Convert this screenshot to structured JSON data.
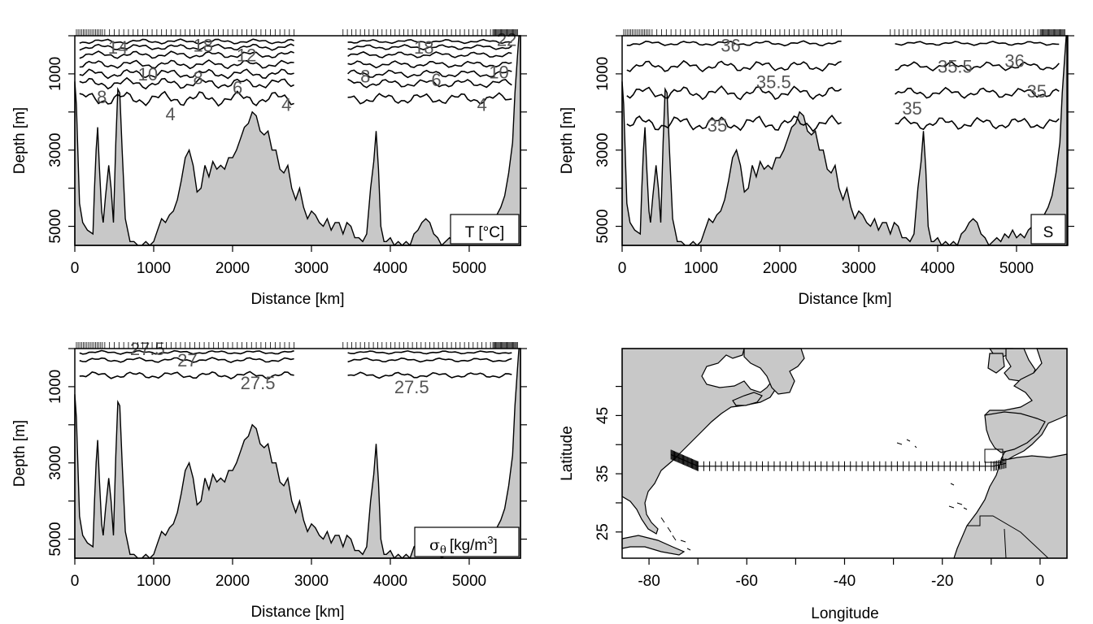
{
  "chart_data": [
    {
      "type": "area",
      "panel": "temperature-section",
      "xlabel": "Distance [km]",
      "ylabel": "Depth [m]",
      "xlim": [
        0,
        5650
      ],
      "ylim_reversed": [
        5500,
        0
      ],
      "xticks": [
        "0",
        "1000",
        "2000",
        "3000",
        "4000",
        "5000"
      ],
      "yticks": [
        "1000",
        "3000",
        "5000"
      ],
      "legend_label": "T [°C]",
      "contour_labels": [
        {
          "text": "14",
          "x": 420,
          "depth": 300
        },
        {
          "text": "18",
          "x": 1500,
          "depth": 250
        },
        {
          "text": "12",
          "x": 2050,
          "depth": 500
        },
        {
          "text": "10",
          "x": 800,
          "depth": 1000
        },
        {
          "text": "8",
          "x": 1500,
          "depth": 1100
        },
        {
          "text": "6",
          "x": 2000,
          "depth": 1350
        },
        {
          "text": "8",
          "x": 280,
          "depth": 1600
        },
        {
          "text": "4",
          "x": 1150,
          "depth": 2050
        },
        {
          "text": "4",
          "x": 2620,
          "depth": 1800
        },
        {
          "text": "18",
          "x": 4300,
          "depth": 300
        },
        {
          "text": "22",
          "x": 5350,
          "depth": 100
        },
        {
          "text": "8",
          "x": 3620,
          "depth": 1050
        },
        {
          "text": "6",
          "x": 4520,
          "depth": 1150
        },
        {
          "text": "10",
          "x": 5250,
          "depth": 950
        },
        {
          "text": "4",
          "x": 5100,
          "depth": 1800
        }
      ]
    },
    {
      "type": "area",
      "panel": "salinity-section",
      "xlabel": "Distance [km]",
      "ylabel": "Depth [m]",
      "xlim": [
        0,
        5650
      ],
      "ylim_reversed": [
        5500,
        0
      ],
      "xticks": [
        "0",
        "1000",
        "2000",
        "3000",
        "4000",
        "5000"
      ],
      "yticks": [
        "1000",
        "3000",
        "5000"
      ],
      "legend_label": "S",
      "contour_labels": [
        {
          "text": "36",
          "x": 1250,
          "depth": 250
        },
        {
          "text": "35.5",
          "x": 1700,
          "depth": 1200
        },
        {
          "text": "35",
          "x": 1080,
          "depth": 2350
        },
        {
          "text": "35.5",
          "x": 4000,
          "depth": 800
        },
        {
          "text": "36",
          "x": 4850,
          "depth": 650
        },
        {
          "text": "35",
          "x": 3550,
          "depth": 1900
        },
        {
          "text": "35",
          "x": 5130,
          "depth": 1450
        }
      ]
    },
    {
      "type": "area",
      "panel": "density-section",
      "xlabel": "Distance [km]",
      "ylabel": "Depth [m]",
      "xlim": [
        0,
        5650
      ],
      "ylim_reversed": [
        5500,
        0
      ],
      "xticks": [
        "0",
        "1000",
        "2000",
        "3000",
        "4000",
        "5000"
      ],
      "yticks": [
        "1000",
        "3000",
        "5000"
      ],
      "legend_label_symbol": "σ",
      "legend_label_sub": "θ",
      "legend_label_units": "[kg/m",
      "legend_label_sup": "3",
      "legend_label_close": "]",
      "contour_labels": [
        {
          "text": "27",
          "x": 1300,
          "depth": 300
        },
        {
          "text": "27.5",
          "x": 2100,
          "depth": 900
        },
        {
          "text": "27.5",
          "x": 4050,
          "depth": 1000
        },
        {
          "text": "27.5",
          "x": 700,
          "depth": 0
        }
      ]
    },
    {
      "type": "scatter",
      "panel": "station-map",
      "xlabel": "Longitude",
      "ylabel": "Latitude",
      "xlim": [
        -85.5,
        5.5
      ],
      "ylim": [
        20.5,
        56.5
      ],
      "xticks": [
        "-80",
        "-60",
        "-40",
        "-20",
        "0"
      ],
      "yticks": [
        "25",
        "35",
        "45"
      ],
      "station_track": [
        {
          "lon": -75.5,
          "lat": 38.3
        },
        {
          "lon": -70.0,
          "lat": 36.3
        },
        {
          "lon": -9.5,
          "lat": 36.3
        },
        {
          "lon": -7.0,
          "lat": 36.8
        }
      ]
    }
  ]
}
